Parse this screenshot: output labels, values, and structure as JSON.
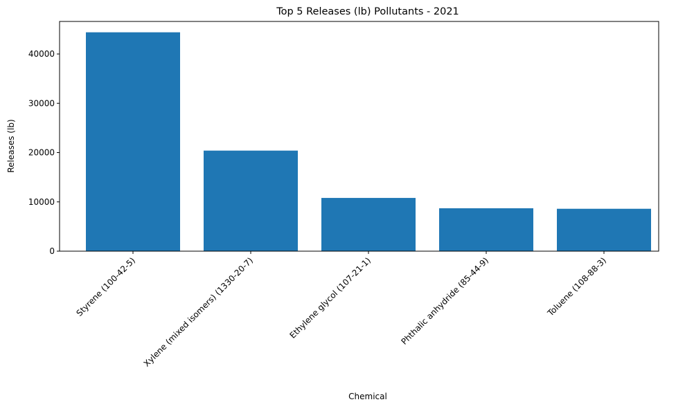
{
  "chart_data": {
    "type": "bar",
    "title": "Top 5 Releases (lb) Pollutants - 2021",
    "xlabel": "Chemical",
    "ylabel": "Releases (lb)",
    "categories": [
      "Styrene (100-42-5)",
      "Xylene (mixed isomers) (1330-20-7)",
      "Ethylene glycol (107-21-1)",
      "Phthalic anhydride (85-44-9)",
      "Toluene (108-88-3)"
    ],
    "values": [
      44400,
      20400,
      10800,
      8700,
      8600
    ],
    "ylim": [
      0,
      46600
    ],
    "yticks": [
      0,
      10000,
      20000,
      30000,
      40000
    ],
    "ytick_labels": [
      "0",
      "10000",
      "20000",
      "30000",
      "40000"
    ],
    "bar_color": "#1f77b4",
    "grid": false,
    "legend": false
  }
}
